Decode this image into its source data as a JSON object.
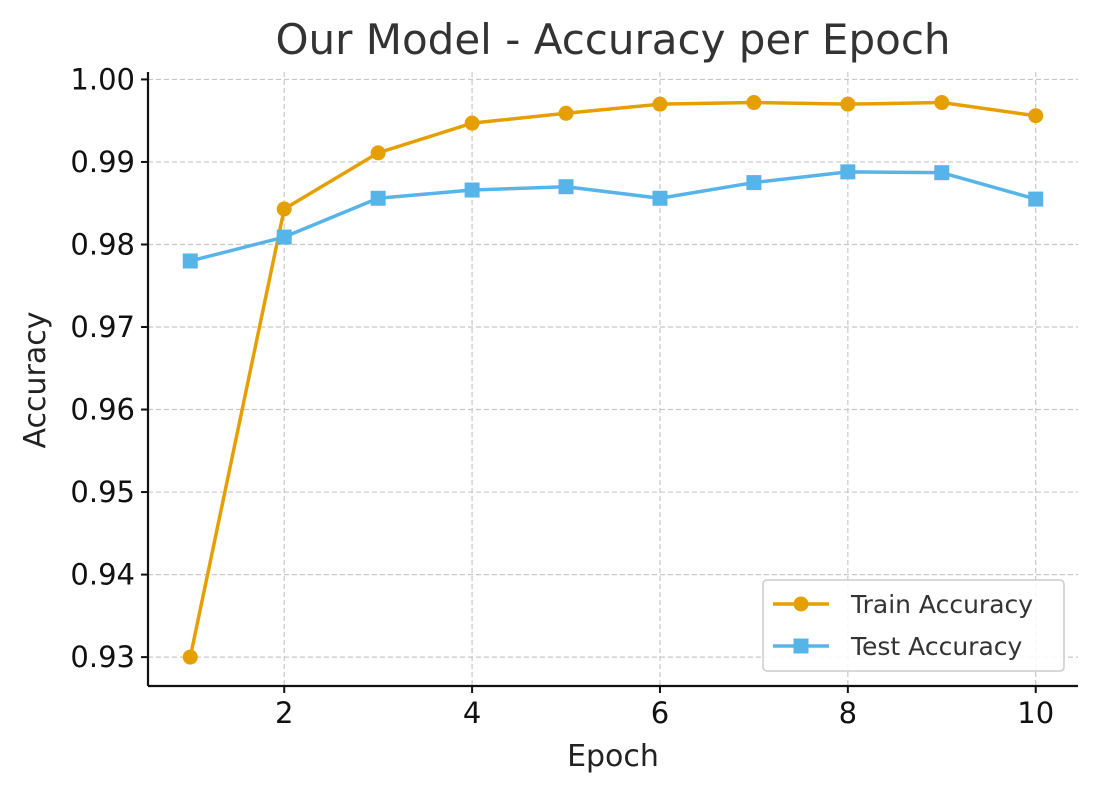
{
  "chart_data": {
    "type": "line",
    "title": "Our Model - Accuracy per Epoch",
    "xlabel": "Epoch",
    "ylabel": "Accuracy",
    "x": [
      1,
      2,
      3,
      4,
      5,
      6,
      7,
      8,
      9,
      10
    ],
    "xlim": [
      0.55,
      10.45
    ],
    "ylim": [
      0.9265,
      1.0009
    ],
    "xticks": [
      2,
      4,
      6,
      8,
      10
    ],
    "xtick_labels": [
      "2",
      "4",
      "6",
      "8",
      "10"
    ],
    "yticks": [
      0.93,
      0.94,
      0.95,
      0.96,
      0.97,
      0.98,
      0.99,
      1.0
    ],
    "ytick_labels": [
      "0.93",
      "0.94",
      "0.95",
      "0.96",
      "0.97",
      "0.98",
      "0.99",
      "1.00"
    ],
    "grid": true,
    "legend_position": "lower-right",
    "series": [
      {
        "name": "Train Accuracy",
        "marker": "circle",
        "color": "#E69F00",
        "values": [
          0.93,
          0.9843,
          0.9911,
          0.9947,
          0.9959,
          0.997,
          0.9972,
          0.997,
          0.9972,
          0.9956
        ]
      },
      {
        "name": "Test Accuracy",
        "marker": "square",
        "color": "#56B4E9",
        "values": [
          0.978,
          0.9809,
          0.9856,
          0.9866,
          0.987,
          0.9856,
          0.9875,
          0.9888,
          0.9887,
          0.9855
        ]
      }
    ]
  }
}
